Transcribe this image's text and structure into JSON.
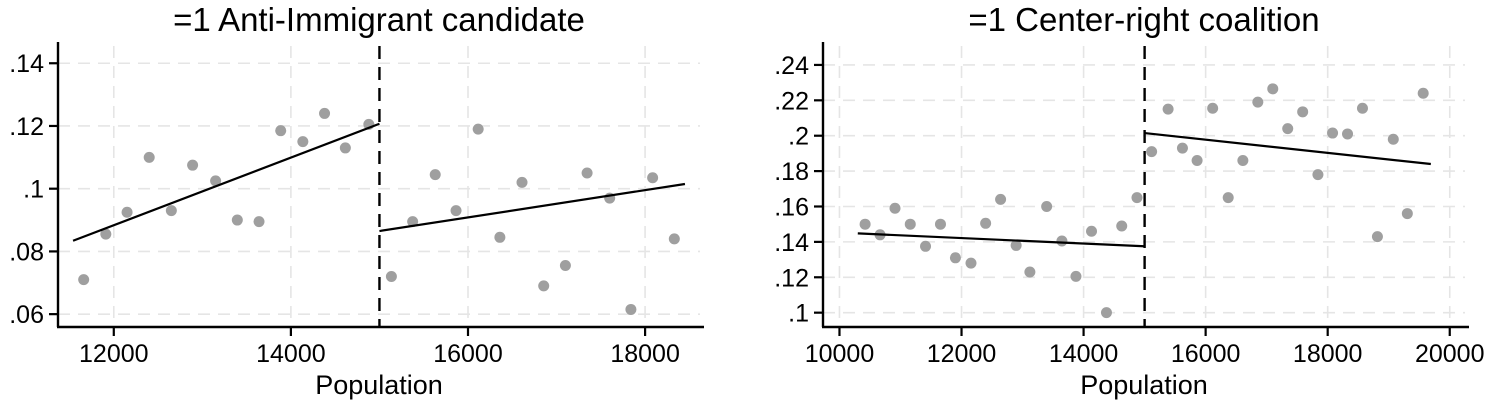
{
  "style": {
    "background": "#ffffff",
    "point_color": "#9f9f9f",
    "fit_line_color": "#000000",
    "cutoff_line_color": "#000000",
    "grid_color": "#e5e5e5",
    "axis_color": "#000000",
    "text_color": "#000000"
  },
  "chart_data": [
    {
      "type": "scatter",
      "title": "=1 Anti-Immigrant candidate",
      "xlabel": "Population",
      "xlim": [
        11370,
        18620
      ],
      "ylim": [
        0.0559,
        0.1455
      ],
      "grid": true,
      "cutoff_x": 15000,
      "xticks": [
        {
          "value": 12000,
          "label": "12000"
        },
        {
          "value": 14000,
          "label": "14000"
        },
        {
          "value": 16000,
          "label": "16000"
        },
        {
          "value": 18000,
          "label": "18000"
        }
      ],
      "yticks": [
        {
          "value": 0.06,
          "label": ".06"
        },
        {
          "value": 0.08,
          "label": ".08"
        },
        {
          "value": 0.1,
          "label": ".1"
        },
        {
          "value": 0.12,
          "label": ".12"
        },
        {
          "value": 0.14,
          "label": ".14"
        }
      ],
      "series": [
        {
          "name": "binned_scatter_pre_cutoff",
          "kind": "scatter",
          "points": [
            [
              11660,
              0.071
            ],
            [
              11910,
              0.0855
            ],
            [
              12150,
              0.0925
            ],
            [
              12400,
              0.11
            ],
            [
              12650,
              0.093
            ],
            [
              12890,
              0.1075
            ],
            [
              13150,
              0.1025
            ],
            [
              13395,
              0.09
            ],
            [
              13640,
              0.0895
            ],
            [
              13885,
              0.1185
            ],
            [
              14135,
              0.115
            ],
            [
              14380,
              0.124
            ],
            [
              14615,
              0.113
            ],
            [
              14880,
              0.1205
            ]
          ]
        },
        {
          "name": "binned_scatter_post_cutoff",
          "kind": "scatter",
          "points": [
            [
              15135,
              0.072
            ],
            [
              15375,
              0.0895
            ],
            [
              15630,
              0.1045
            ],
            [
              15865,
              0.093
            ],
            [
              16115,
              0.119
            ],
            [
              16360,
              0.0845
            ],
            [
              16610,
              0.102
            ],
            [
              16855,
              0.069
            ],
            [
              17100,
              0.0755
            ],
            [
              17345,
              0.105
            ],
            [
              17600,
              0.097
            ],
            [
              17840,
              0.0615
            ],
            [
              18085,
              0.1035
            ],
            [
              18330,
              0.084
            ]
          ]
        },
        {
          "name": "linear_fit_pre_cutoff",
          "kind": "line",
          "points": [
            [
              11540,
              0.0834
            ],
            [
              15000,
              0.1207
            ]
          ]
        },
        {
          "name": "linear_fit_post_cutoff",
          "kind": "line",
          "points": [
            [
              15000,
              0.0865
            ],
            [
              18450,
              0.1015
            ]
          ]
        }
      ]
    },
    {
      "type": "scatter",
      "title": "=1 Center-right coalition",
      "xlabel": "Population",
      "xlim": [
        9730,
        20250
      ],
      "ylim": [
        0.0919,
        0.2507
      ],
      "grid": true,
      "cutoff_x": 15000,
      "xticks": [
        {
          "value": 10000,
          "label": "10000"
        },
        {
          "value": 12000,
          "label": "12000"
        },
        {
          "value": 14000,
          "label": "14000"
        },
        {
          "value": 16000,
          "label": "16000"
        },
        {
          "value": 18000,
          "label": "18000"
        },
        {
          "value": 20000,
          "label": "20000"
        }
      ],
      "yticks": [
        {
          "value": 0.1,
          "label": ".1"
        },
        {
          "value": 0.12,
          "label": ".12"
        },
        {
          "value": 0.14,
          "label": ".14"
        },
        {
          "value": 0.16,
          "label": ".16"
        },
        {
          "value": 0.18,
          "label": ".18"
        },
        {
          "value": 0.2,
          "label": ".2"
        },
        {
          "value": 0.22,
          "label": ".22"
        },
        {
          "value": 0.24,
          "label": ".24"
        }
      ],
      "series": [
        {
          "name": "binned_scatter_pre_cutoff",
          "kind": "scatter",
          "points": [
            [
              10420,
              0.15
            ],
            [
              10665,
              0.144
            ],
            [
              10910,
              0.159
            ],
            [
              11160,
              0.15
            ],
            [
              11410,
              0.1375
            ],
            [
              11655,
              0.15
            ],
            [
              11900,
              0.131
            ],
            [
              12155,
              0.128
            ],
            [
              12395,
              0.1505
            ],
            [
              12640,
              0.164
            ],
            [
              12895,
              0.138
            ],
            [
              13120,
              0.123
            ],
            [
              13395,
              0.16
            ],
            [
              13645,
              0.1405
            ],
            [
              13875,
              0.1205
            ],
            [
              14130,
              0.146
            ],
            [
              14375,
              0.1
            ],
            [
              14625,
              0.149
            ],
            [
              14875,
              0.165
            ]
          ]
        },
        {
          "name": "binned_scatter_post_cutoff",
          "kind": "scatter",
          "points": [
            [
              15115,
              0.191
            ],
            [
              15385,
              0.215
            ],
            [
              15620,
              0.193
            ],
            [
              15860,
              0.186
            ],
            [
              16115,
              0.2155
            ],
            [
              16370,
              0.165
            ],
            [
              16610,
              0.186
            ],
            [
              16855,
              0.219
            ],
            [
              17100,
              0.2265
            ],
            [
              17345,
              0.204
            ],
            [
              17590,
              0.2135
            ],
            [
              17840,
              0.178
            ],
            [
              18080,
              0.2015
            ],
            [
              18325,
              0.201
            ],
            [
              18570,
              0.2155
            ],
            [
              18815,
              0.143
            ],
            [
              19075,
              0.198
            ],
            [
              19305,
              0.156
            ],
            [
              19565,
              0.224
            ]
          ]
        },
        {
          "name": "linear_fit_pre_cutoff",
          "kind": "line",
          "points": [
            [
              10300,
              0.1448
            ],
            [
              15000,
              0.1375
            ]
          ]
        },
        {
          "name": "linear_fit_post_cutoff",
          "kind": "line",
          "points": [
            [
              15000,
              0.2015
            ],
            [
              19690,
              0.184
            ]
          ]
        }
      ]
    }
  ]
}
